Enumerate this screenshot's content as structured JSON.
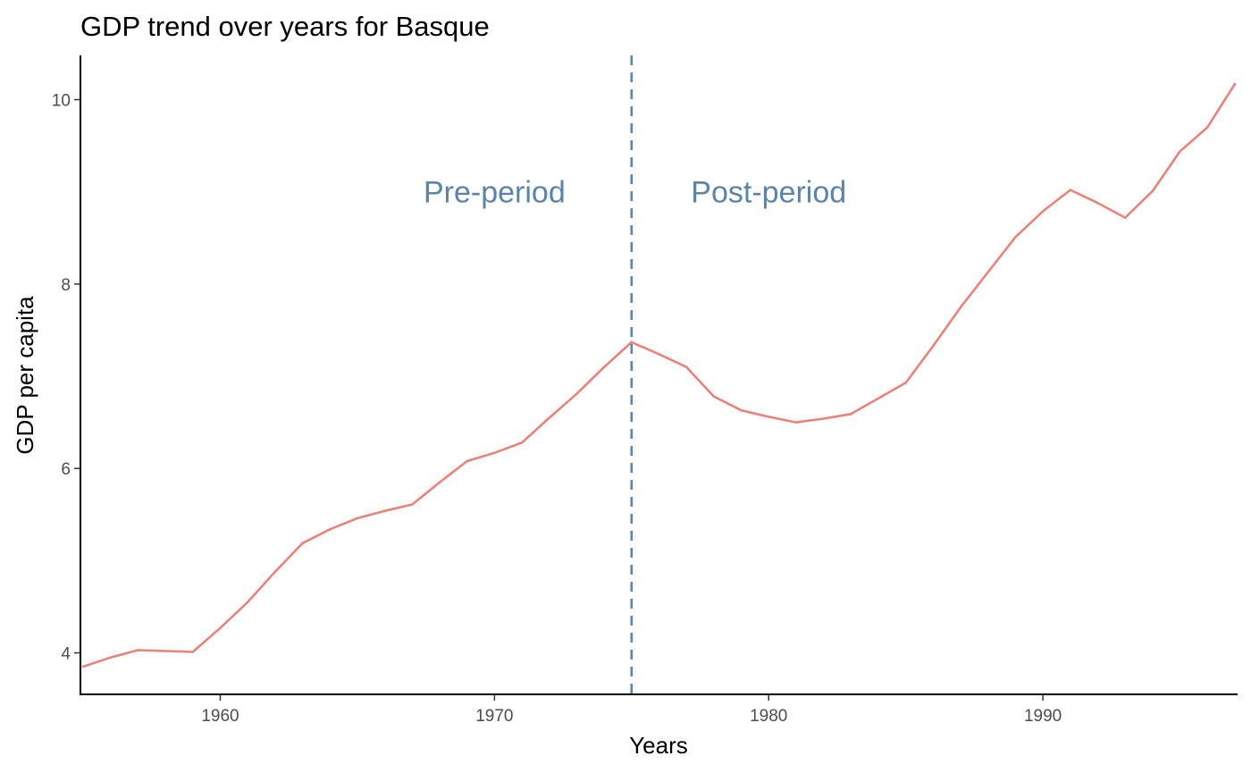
{
  "chart_data": {
    "type": "line",
    "title": "GDP trend over years for Basque",
    "xlabel": "Years",
    "ylabel": "GDP per capita",
    "xlim": [
      1954.9,
      1997.1
    ],
    "ylim": [
      3.55,
      10.48
    ],
    "grid": false,
    "x_ticks": [
      1960,
      1970,
      1980,
      1990
    ],
    "y_ticks": [
      4,
      6,
      8,
      10
    ],
    "x_tick_labels": [
      "1960",
      "1970",
      "1980",
      "1990"
    ],
    "y_tick_labels": [
      "4",
      "6",
      "8",
      "10"
    ],
    "series": [
      {
        "color": "#E8837B",
        "x": [
          1955,
          1956,
          1957,
          1958,
          1959,
          1960,
          1961,
          1962,
          1963,
          1964,
          1965,
          1966,
          1967,
          1968,
          1969,
          1970,
          1971,
          1972,
          1973,
          1974,
          1975,
          1976,
          1977,
          1978,
          1979,
          1980,
          1981,
          1982,
          1983,
          1984,
          1985,
          1986,
          1987,
          1988,
          1989,
          1990,
          1991,
          1992,
          1993,
          1994,
          1995,
          1996,
          1997
        ],
        "y": [
          3.85,
          3.95,
          4.03,
          4.02,
          4.01,
          4.27,
          4.55,
          4.88,
          5.19,
          5.34,
          5.46,
          5.54,
          5.61,
          5.85,
          6.08,
          6.17,
          6.28,
          6.55,
          6.81,
          7.1,
          7.37,
          7.24,
          7.1,
          6.78,
          6.63,
          6.56,
          6.5,
          6.54,
          6.59,
          6.76,
          6.93,
          7.33,
          7.75,
          8.13,
          8.51,
          8.79,
          9.02,
          8.88,
          8.72,
          9.01,
          9.44,
          9.7,
          10.17
        ]
      }
    ],
    "reference_line": {
      "x": 1975,
      "style": "dashed",
      "color": "#5B84A8"
    },
    "annotations": [
      {
        "text": "Pre-period",
        "x": 1970,
        "y": 9.0,
        "color": "#5B84A8"
      },
      {
        "text": "Post-period",
        "x": 1980,
        "y": 9.0,
        "color": "#5B84A8"
      }
    ]
  }
}
